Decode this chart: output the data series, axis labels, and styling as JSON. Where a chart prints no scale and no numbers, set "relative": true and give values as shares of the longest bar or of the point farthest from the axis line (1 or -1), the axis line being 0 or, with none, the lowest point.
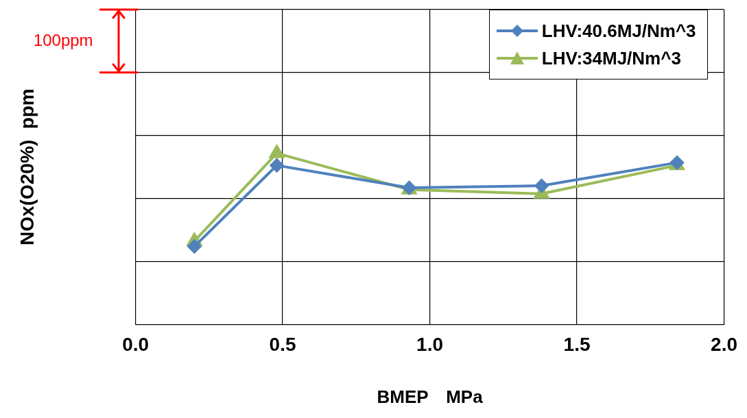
{
  "chart_data": {
    "type": "line",
    "relative": true,
    "xlabel": "BMEP　MPa",
    "ylabel": "NOx(O20%)  ppm",
    "xlim": [
      0,
      2
    ],
    "xticks": [
      {
        "value": 0,
        "label": "0.0"
      },
      {
        "value": 0.5,
        "label": "0.5"
      },
      {
        "value": 1,
        "label": "1.0"
      },
      {
        "value": 1.5,
        "label": "1.5"
      },
      {
        "value": 2,
        "label": "2.0"
      }
    ],
    "tick_labels": "x",
    "grid": true,
    "legend": "top right",
    "line_style": "solid",
    "annotations": [
      "100ppm"
    ],
    "series": [
      {
        "name": "LHV:40.6MJ/Nm^3",
        "color": "#4f81bd",
        "marker": "diamond",
        "x": [
          0.2,
          0.48,
          0.93,
          1.38,
          1.84
        ],
        "values": [
          0.455,
          0.929,
          0.798,
          0.81,
          0.945
        ]
      },
      {
        "name": "LHV:34MJ/Nm^3",
        "color": "#9bbb59",
        "marker": "triangle",
        "x": [
          0.2,
          0.48,
          0.93,
          1.38,
          1.84
        ],
        "values": [
          0.486,
          1,
          0.787,
          0.763,
          0.929
        ]
      }
    ]
  }
}
